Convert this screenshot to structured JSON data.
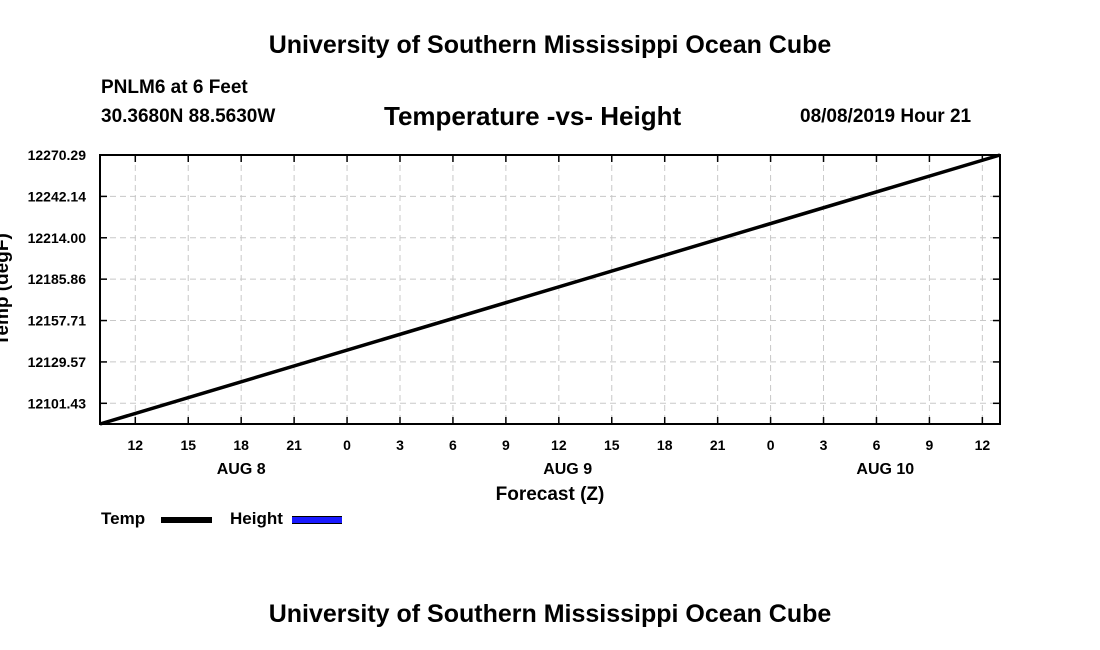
{
  "header": {
    "title": "University of Southern Mississippi Ocean Cube",
    "station": "PNLM6 at 6 Feet",
    "coords": "30.3680N 88.5630W",
    "datetime": "08/08/2019 Hour 21"
  },
  "footer": {
    "title": "University of Southern Mississippi Ocean Cube"
  },
  "legend": {
    "temp_label": "Temp",
    "height_label": "Height",
    "temp_color": "#000000",
    "height_color": "#1a1aff"
  },
  "chart_data": {
    "type": "line",
    "title": "Temperature -vs- Height",
    "xlabel": "Forecast (Z)",
    "ylabel": "Temp (degF)",
    "grid": true,
    "legend_position": "bottom-left",
    "x_unit": "hours from 2019-08-08 12Z",
    "xlim": [
      -2,
      49
    ],
    "ylim": [
      12087.36,
      12270.29
    ],
    "x_ticks": [
      0,
      3,
      6,
      9,
      12,
      15,
      18,
      21,
      24,
      27,
      30,
      33,
      36,
      39,
      42,
      45,
      48
    ],
    "x_tick_labels": [
      "12",
      "15",
      "18",
      "21",
      "0",
      "3",
      "6",
      "9",
      "12",
      "15",
      "18",
      "21",
      "0",
      "3",
      "6",
      "9",
      "12"
    ],
    "y_ticks": [
      12101.43,
      12129.57,
      12157.71,
      12185.86,
      12214.0,
      12242.14,
      12270.29
    ],
    "y_tick_labels": [
      "12101.43",
      "12129.57",
      "12157.71",
      "12185.86",
      "12214.00",
      "12242.14",
      "12270.29"
    ],
    "day_labels": [
      {
        "label": "AUG 8",
        "x": 6
      },
      {
        "label": "AUG 9",
        "x": 24.5
      },
      {
        "label": "AUG 10",
        "x": 42.5
      }
    ],
    "series": [
      {
        "name": "Temp",
        "color": "#000000",
        "x": [
          -2,
          49
        ],
        "y": [
          12087.36,
          12270.29
        ]
      }
    ]
  }
}
